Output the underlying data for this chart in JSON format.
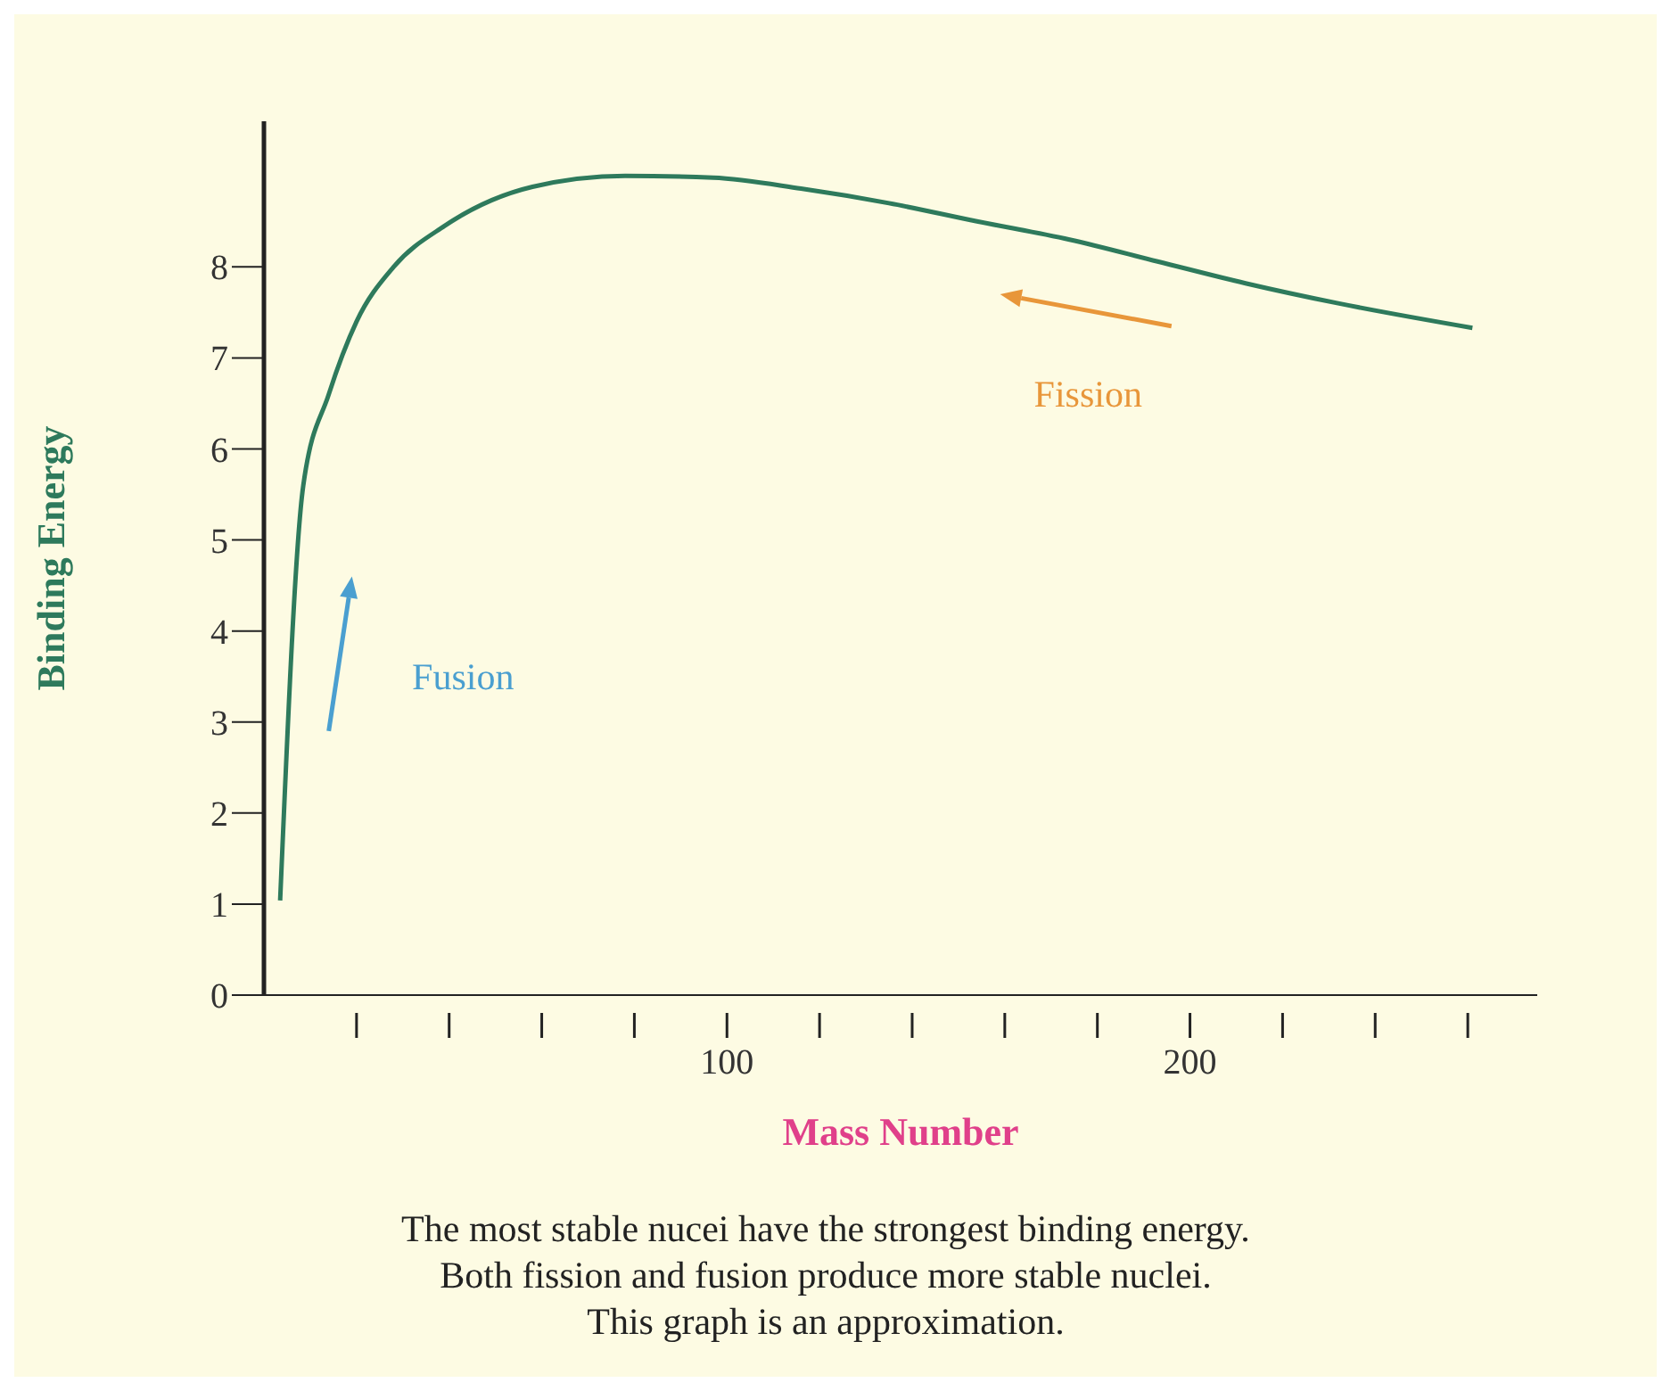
{
  "chart_data": {
    "type": "line",
    "xlabel": "Mass Number",
    "ylabel": "Binding Energy",
    "x": [
      3.5,
      8.5,
      14,
      20,
      28,
      39,
      58,
      78,
      97,
      116,
      135,
      154,
      174,
      193,
      212,
      232,
      261
    ],
    "series": [
      {
        "color": "#2e7a5c",
        "values": [
          1.04,
          5.6,
          6.6,
          7.4,
          8.0,
          8.45,
          8.88,
          9.0,
          8.98,
          8.86,
          8.7,
          8.5,
          8.3,
          8.06,
          7.82,
          7.6,
          7.33
        ]
      }
    ],
    "xlim": [
      0,
      275
    ],
    "ylim": [
      0,
      9.6
    ],
    "xticks": [
      {
        "value": 20,
        "label": null
      },
      {
        "value": 40,
        "label": null
      },
      {
        "value": 60,
        "label": null
      },
      {
        "value": 80,
        "label": null
      },
      100,
      {
        "value": 120,
        "label": null
      },
      {
        "value": 140,
        "label": null
      },
      {
        "value": 160,
        "label": null
      },
      {
        "value": 180,
        "label": null
      },
      200,
      {
        "value": 220,
        "label": null
      },
      {
        "value": 240,
        "label": null
      },
      {
        "value": 260,
        "label": null
      }
    ],
    "yticks": [
      0,
      1,
      2,
      3,
      4,
      5,
      6,
      7,
      8
    ],
    "grid": false,
    "legend": false,
    "marker": "none",
    "line_style": "solid",
    "annotations": [
      "Fusion",
      "Fission",
      "The most stable nucei have the strongest binding energy.",
      "Both fission and fusion produce more stable nuclei.",
      "This graph is an approximation."
    ]
  }
}
